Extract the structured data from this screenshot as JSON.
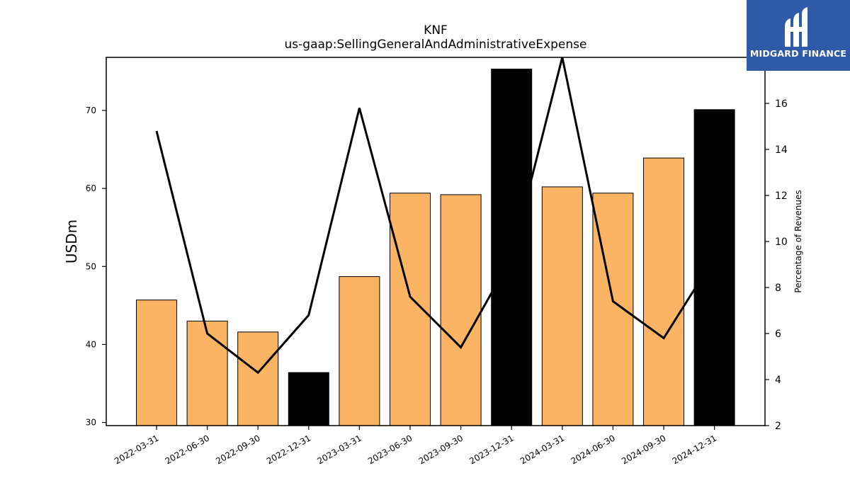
{
  "chart_data": {
    "type": "bar",
    "title": "KNF",
    "subtitle": "us-gaap:SellingGeneralAndAdministrativeExpense",
    "ylabel": "USDm",
    "y2label": "Percentage of Revenues",
    "categories": [
      "2022-03-31",
      "2022-06-30",
      "2022-09-30",
      "2022-12-31",
      "2023-03-31",
      "2023-06-30",
      "2023-09-30",
      "2023-12-31",
      "2024-03-31",
      "2024-06-30",
      "2024-09-30",
      "2024-12-31"
    ],
    "series": [
      {
        "type": "bar",
        "values": [
          45.7,
          43.0,
          41.6,
          36.4,
          48.7,
          59.4,
          59.2,
          75.3,
          60.2,
          59.4,
          63.9,
          70.1
        ],
        "colors": [
          "#fbb463",
          "#fbb463",
          "#fbb463",
          "#000000",
          "#fbb463",
          "#fbb463",
          "#fbb463",
          "#000000",
          "#fbb463",
          "#fbb463",
          "#fbb463",
          "#000000"
        ]
      },
      {
        "type": "line",
        "axis": "right",
        "values": [
          14.8,
          6.0,
          4.3,
          6.8,
          15.8,
          7.6,
          5.4,
          9.3,
          18.0,
          7.4,
          5.8,
          9.3
        ],
        "color": "#000000"
      }
    ],
    "ylim": [
      29.6,
      76.8
    ],
    "y2lim": [
      2.0,
      18.0
    ],
    "yticks": [
      30,
      40,
      50,
      60,
      70
    ],
    "y2ticks": [
      2,
      4,
      6,
      8,
      10,
      12,
      14,
      16
    ],
    "grid": false
  },
  "logo": {
    "text": "MIDGARD FINANCE"
  }
}
